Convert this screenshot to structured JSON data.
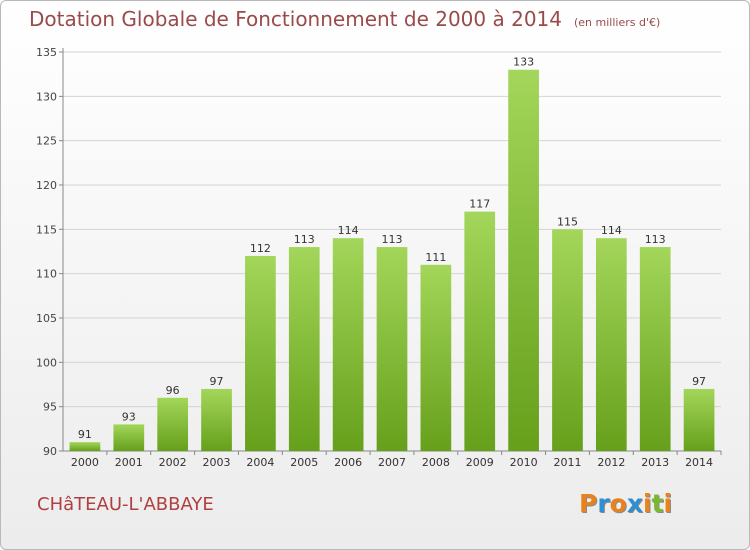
{
  "header": {
    "title": "Dotation Globale de Fonctionnement de 2000 à 2014",
    "subtitle": "(en milliers d'€)"
  },
  "footer": {
    "commune": "CHâTEAU-L'ABBAYE",
    "logo_text": "Proxiti"
  },
  "colors": {
    "title": "#9a4a4a",
    "bar_top": "#a3d65a",
    "bar_bottom": "#66a01b",
    "logo": [
      "#e8821e",
      "#2f8fd0",
      "#e8821e",
      "#2f8fd0",
      "#e8821e",
      "#7ab82e",
      "#e8821e"
    ]
  },
  "chart_data": {
    "type": "bar",
    "title": "Dotation Globale de Fonctionnement de 2000 à 2014",
    "subtitle": "(en milliers d'€)",
    "categories": [
      "2000",
      "2001",
      "2002",
      "2003",
      "2004",
      "2005",
      "2006",
      "2007",
      "2008",
      "2009",
      "2010",
      "2011",
      "2012",
      "2013",
      "2014"
    ],
    "values": [
      91,
      93,
      96,
      97,
      112,
      113,
      114,
      113,
      111,
      117,
      133,
      115,
      114,
      113,
      97
    ],
    "ylim": [
      90,
      135
    ],
    "yticks": [
      90,
      95,
      100,
      105,
      110,
      115,
      120,
      125,
      130,
      135
    ],
    "grid": true,
    "data_labels": true
  }
}
